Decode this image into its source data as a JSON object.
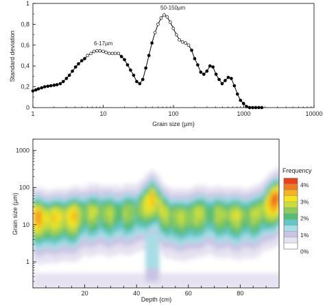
{
  "chart_data": [
    {
      "type": "line",
      "xscale": "log",
      "xlim": [
        1,
        10000
      ],
      "ylim": [
        0,
        1
      ],
      "xlabel": "Grain size (µm)",
      "ylabel": "Standard deviation",
      "xticks": [
        "1",
        "10",
        "100",
        "1000",
        "10000"
      ],
      "yticks": [
        "0",
        "0,2",
        "0,4",
        "0,6",
        "0,8",
        "1"
      ],
      "annotations": [
        {
          "text": "6-17µm",
          "x": 10,
          "y": 0.58
        },
        {
          "text": "50-150µm",
          "x": 75,
          "y": 0.93
        }
      ],
      "series": [
        {
          "x": [
            1,
            1.1,
            1.2,
            1.33,
            1.47,
            1.63,
            1.8,
            2.0,
            2.2,
            2.45,
            2.7,
            3.0,
            3.3,
            3.65,
            4.05,
            4.45,
            4.95,
            5.45,
            6.0,
            6.7,
            7.4,
            8.2,
            9.0,
            10.0,
            11.0,
            12.2,
            13.5,
            14.9,
            16.5,
            18.2,
            20.1,
            22.2,
            24.5,
            27.1,
            30.0,
            33.1,
            36.6,
            40.4,
            44.7,
            49.4,
            54.6,
            60.3,
            66.7,
            73.7,
            81.4,
            90.0,
            99.5,
            110,
            121.5,
            134.3,
            148.4,
            164,
            181.3,
            200.3,
            221.4,
            244.7,
            270.4,
            298.9,
            330.3,
            365,
            403.4,
            445.9,
            492.7,
            544.6,
            601.8,
            665.1,
            735.1,
            812.4,
            897.8,
            992.3,
            1096,
            1212,
            1339,
            1480,
            1636,
            1808
          ],
          "y": [
            0.16,
            0.17,
            0.18,
            0.19,
            0.2,
            0.205,
            0.21,
            0.215,
            0.22,
            0.23,
            0.25,
            0.28,
            0.31,
            0.35,
            0.39,
            0.42,
            0.45,
            0.47,
            0.5,
            0.52,
            0.54,
            0.545,
            0.545,
            0.54,
            0.53,
            0.52,
            0.52,
            0.52,
            0.52,
            0.49,
            0.46,
            0.41,
            0.36,
            0.31,
            0.25,
            0.23,
            0.27,
            0.38,
            0.5,
            0.62,
            0.72,
            0.8,
            0.86,
            0.89,
            0.87,
            0.82,
            0.76,
            0.7,
            0.65,
            0.63,
            0.62,
            0.6,
            0.55,
            0.47,
            0.41,
            0.34,
            0.32,
            0.35,
            0.4,
            0.39,
            0.32,
            0.27,
            0.23,
            0.26,
            0.29,
            0.28,
            0.21,
            0.13,
            0.07,
            0.04,
            0.01,
            0.0,
            0.0,
            0.0,
            0.0,
            0.0
          ],
          "open_markers_range": [
            6.0,
            16.5,
            54.6,
            164
          ]
        }
      ]
    },
    {
      "type": "heatmap",
      "xlim": [
        0,
        95
      ],
      "ylim": [
        0.2,
        2000
      ],
      "yscale": "log",
      "xlabel": "Depth (cm)",
      "ylabel": "Grain size (µm)",
      "xticks": [
        "20",
        "40",
        "60",
        "80"
      ],
      "yticks": [
        "1",
        "10",
        "100",
        "1000"
      ],
      "legend": {
        "title": "Frequency",
        "labels": [
          "4%",
          "3%",
          "2%",
          "1%",
          "0%"
        ],
        "colors": [
          "#e8421c",
          "#f07a1e",
          "#f5b31f",
          "#f6e21f",
          "#c9de3a",
          "#8fcb5b",
          "#58bc76",
          "#62c6c6",
          "#a7dde6",
          "#c9c4e4",
          "#e6e2f1",
          "#ffffff"
        ]
      },
      "mode_profile": {
        "depth": [
          0,
          3,
          6,
          10,
          15,
          18,
          20,
          25,
          30,
          35,
          40,
          44,
          46,
          48,
          50,
          52,
          55,
          58,
          62,
          65,
          70,
          75,
          80,
          85,
          88,
          91,
          95
        ],
        "mode_um": [
          18,
          17,
          16,
          17,
          18,
          20,
          22,
          24,
          22,
          23,
          25,
          40,
          55,
          45,
          25,
          20,
          18,
          17,
          20,
          22,
          21,
          20,
          19,
          20,
          25,
          40,
          60
        ],
        "peak_pct": [
          3.4,
          3.6,
          3.2,
          3.0,
          3.3,
          3.0,
          2.4,
          2.6,
          2.4,
          2.3,
          2.4,
          2.8,
          3.8,
          3.0,
          2.6,
          2.5,
          2.8,
          2.3,
          2.9,
          2.4,
          2.3,
          2.7,
          2.6,
          2.4,
          2.7,
          3.4,
          4.2
        ]
      }
    }
  ]
}
